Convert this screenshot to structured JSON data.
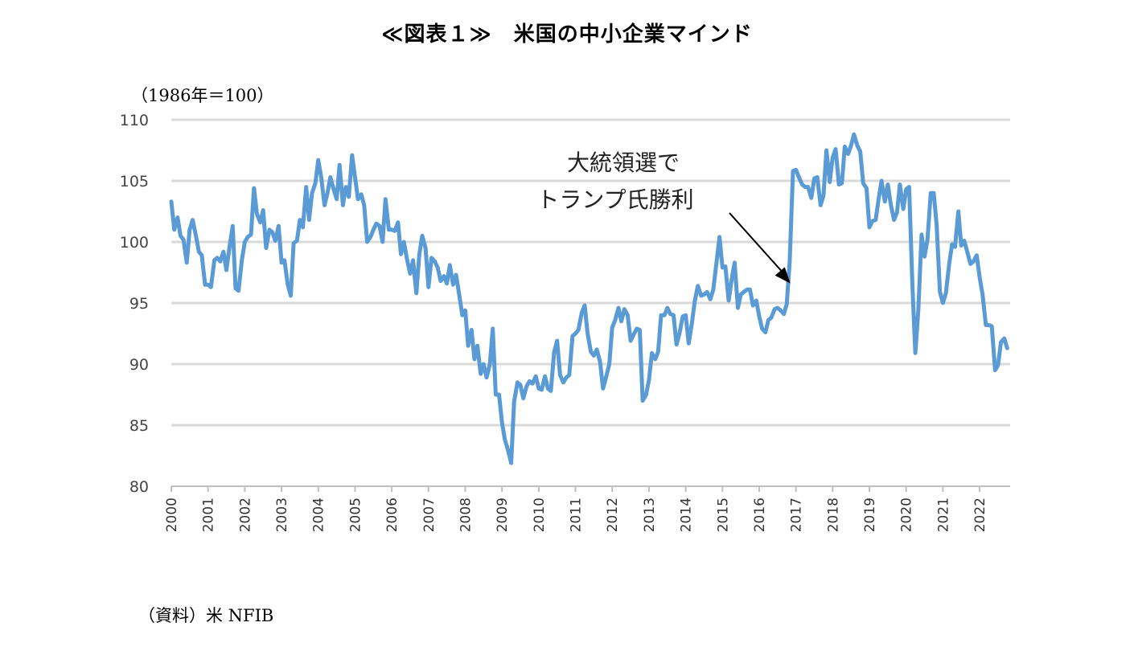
{
  "title": "≪図表１≫　米国の中小企業マインド",
  "unit_label": "（1986年＝100）",
  "source": "（資料）米 NFIB",
  "chart_data": {
    "type": "line",
    "xlabel": "",
    "ylabel": "",
    "ylim": [
      80,
      110
    ],
    "y_ticks": [
      80,
      85,
      90,
      95,
      100,
      105,
      110
    ],
    "x_ticks": [
      "2000",
      "2001",
      "2002",
      "2003",
      "2004",
      "2005",
      "2006",
      "2007",
      "2008",
      "2009",
      "2010",
      "2011",
      "2012",
      "2013",
      "2014",
      "2015",
      "2016",
      "2017",
      "2018",
      "2019",
      "2020",
      "2021",
      "2022"
    ],
    "grid": true,
    "line_color": "#5B9BD5",
    "annotation": {
      "lines": [
        "大統領選で",
        "トランプ氏勝利"
      ],
      "x": 2016.85,
      "y": 96.6
    },
    "series": [
      {
        "points": [
          [
            2000.0,
            103.3
          ],
          [
            2000.08,
            101.0
          ],
          [
            2000.17,
            102.0
          ],
          [
            2000.25,
            100.5
          ],
          [
            2000.33,
            100.2
          ],
          [
            2000.42,
            98.3
          ],
          [
            2000.5,
            101.0
          ],
          [
            2000.58,
            101.8
          ],
          [
            2000.67,
            100.5
          ],
          [
            2000.75,
            99.2
          ],
          [
            2000.83,
            98.9
          ],
          [
            2000.92,
            96.5
          ],
          [
            2001.0,
            96.5
          ],
          [
            2001.08,
            96.3
          ],
          [
            2001.17,
            98.5
          ],
          [
            2001.25,
            98.7
          ],
          [
            2001.33,
            98.4
          ],
          [
            2001.42,
            99.2
          ],
          [
            2001.5,
            97.7
          ],
          [
            2001.58,
            99.5
          ],
          [
            2001.67,
            101.3
          ],
          [
            2001.75,
            96.2
          ],
          [
            2001.83,
            96.0
          ],
          [
            2001.92,
            98.5
          ],
          [
            2002.0,
            100.0
          ],
          [
            2002.08,
            100.4
          ],
          [
            2002.17,
            100.6
          ],
          [
            2002.25,
            104.4
          ],
          [
            2002.33,
            102.3
          ],
          [
            2002.42,
            101.6
          ],
          [
            2002.5,
            102.6
          ],
          [
            2002.58,
            99.5
          ],
          [
            2002.67,
            101.0
          ],
          [
            2002.75,
            100.8
          ],
          [
            2002.83,
            100.1
          ],
          [
            2002.92,
            101.3
          ],
          [
            2003.0,
            98.3
          ],
          [
            2003.08,
            98.5
          ],
          [
            2003.17,
            96.5
          ],
          [
            2003.25,
            95.6
          ],
          [
            2003.33,
            99.9
          ],
          [
            2003.42,
            100.1
          ],
          [
            2003.5,
            101.8
          ],
          [
            2003.58,
            101.2
          ],
          [
            2003.67,
            104.5
          ],
          [
            2003.75,
            101.8
          ],
          [
            2003.83,
            104.0
          ],
          [
            2003.92,
            104.8
          ],
          [
            2004.0,
            106.7
          ],
          [
            2004.08,
            105.3
          ],
          [
            2004.17,
            103.0
          ],
          [
            2004.25,
            104.0
          ],
          [
            2004.33,
            105.3
          ],
          [
            2004.42,
            104.3
          ],
          [
            2004.5,
            103.5
          ],
          [
            2004.58,
            106.3
          ],
          [
            2004.67,
            103.0
          ],
          [
            2004.75,
            104.5
          ],
          [
            2004.83,
            103.7
          ],
          [
            2004.92,
            107.1
          ],
          [
            2005.0,
            105.3
          ],
          [
            2005.08,
            103.5
          ],
          [
            2005.17,
            103.9
          ],
          [
            2005.25,
            103.0
          ],
          [
            2005.33,
            100.0
          ],
          [
            2005.42,
            100.4
          ],
          [
            2005.5,
            101.0
          ],
          [
            2005.58,
            101.5
          ],
          [
            2005.67,
            101.3
          ],
          [
            2005.75,
            100.0
          ],
          [
            2005.83,
            103.5
          ],
          [
            2005.92,
            101.0
          ],
          [
            2006.0,
            101.0
          ],
          [
            2006.08,
            100.9
          ],
          [
            2006.17,
            101.6
          ],
          [
            2006.25,
            99.0
          ],
          [
            2006.33,
            100.0
          ],
          [
            2006.42,
            98.5
          ],
          [
            2006.5,
            97.4
          ],
          [
            2006.58,
            98.5
          ],
          [
            2006.67,
            95.8
          ],
          [
            2006.75,
            99.0
          ],
          [
            2006.83,
            100.5
          ],
          [
            2006.92,
            99.5
          ],
          [
            2007.0,
            96.3
          ],
          [
            2007.08,
            98.7
          ],
          [
            2007.17,
            98.4
          ],
          [
            2007.25,
            97.9
          ],
          [
            2007.33,
            96.8
          ],
          [
            2007.42,
            97.2
          ],
          [
            2007.5,
            96.6
          ],
          [
            2007.58,
            98.1
          ],
          [
            2007.67,
            96.5
          ],
          [
            2007.75,
            97.3
          ],
          [
            2007.83,
            95.8
          ],
          [
            2007.92,
            94.0
          ],
          [
            2008.0,
            94.4
          ],
          [
            2008.08,
            91.5
          ],
          [
            2008.17,
            92.8
          ],
          [
            2008.25,
            90.4
          ],
          [
            2008.33,
            91.5
          ],
          [
            2008.42,
            89.2
          ],
          [
            2008.5,
            90.0
          ],
          [
            2008.58,
            88.9
          ],
          [
            2008.67,
            90.0
          ],
          [
            2008.75,
            92.9
          ],
          [
            2008.83,
            87.5
          ],
          [
            2008.92,
            87.5
          ],
          [
            2009.0,
            85.2
          ],
          [
            2009.08,
            83.8
          ],
          [
            2009.17,
            82.9
          ],
          [
            2009.25,
            81.9
          ],
          [
            2009.33,
            86.9
          ],
          [
            2009.42,
            88.5
          ],
          [
            2009.5,
            88.3
          ],
          [
            2009.58,
            87.2
          ],
          [
            2009.67,
            88.2
          ],
          [
            2009.75,
            88.6
          ],
          [
            2009.83,
            88.4
          ],
          [
            2009.92,
            89.0
          ],
          [
            2010.0,
            88.0
          ],
          [
            2010.08,
            87.9
          ],
          [
            2010.17,
            89.0
          ],
          [
            2010.25,
            88.0
          ],
          [
            2010.33,
            87.8
          ],
          [
            2010.42,
            91.0
          ],
          [
            2010.5,
            91.9
          ],
          [
            2010.58,
            89.1
          ],
          [
            2010.67,
            88.5
          ],
          [
            2010.75,
            88.9
          ],
          [
            2010.83,
            89.1
          ],
          [
            2010.92,
            92.3
          ],
          [
            2011.0,
            92.5
          ],
          [
            2011.08,
            92.8
          ],
          [
            2011.17,
            94.2
          ],
          [
            2011.25,
            94.8
          ],
          [
            2011.33,
            92.5
          ],
          [
            2011.42,
            91.0
          ],
          [
            2011.5,
            90.7
          ],
          [
            2011.58,
            91.2
          ],
          [
            2011.67,
            90.2
          ],
          [
            2011.75,
            88.0
          ],
          [
            2011.83,
            88.9
          ],
          [
            2011.92,
            90.0
          ],
          [
            2012.0,
            93.0
          ],
          [
            2012.08,
            93.6
          ],
          [
            2012.17,
            94.6
          ],
          [
            2012.25,
            93.5
          ],
          [
            2012.33,
            94.5
          ],
          [
            2012.42,
            94.0
          ],
          [
            2012.5,
            91.9
          ],
          [
            2012.58,
            92.4
          ],
          [
            2012.67,
            92.9
          ],
          [
            2012.75,
            92.8
          ],
          [
            2012.83,
            87.0
          ],
          [
            2012.92,
            87.5
          ],
          [
            2013.0,
            88.7
          ],
          [
            2013.08,
            90.9
          ],
          [
            2013.17,
            90.4
          ],
          [
            2013.25,
            91.0
          ],
          [
            2013.33,
            94.0
          ],
          [
            2013.42,
            94.0
          ],
          [
            2013.5,
            94.6
          ],
          [
            2013.58,
            94.1
          ],
          [
            2013.67,
            94.0
          ],
          [
            2013.75,
            91.6
          ],
          [
            2013.83,
            92.5
          ],
          [
            2013.92,
            93.9
          ],
          [
            2014.0,
            94.0
          ],
          [
            2014.08,
            91.7
          ],
          [
            2014.17,
            93.4
          ],
          [
            2014.25,
            95.2
          ],
          [
            2014.33,
            96.4
          ],
          [
            2014.42,
            95.6
          ],
          [
            2014.5,
            95.7
          ],
          [
            2014.58,
            95.9
          ],
          [
            2014.67,
            95.3
          ],
          [
            2014.75,
            96.1
          ],
          [
            2014.83,
            98.1
          ],
          [
            2014.92,
            100.4
          ],
          [
            2015.0,
            97.9
          ],
          [
            2015.08,
            98.0
          ],
          [
            2015.17,
            95.2
          ],
          [
            2015.25,
            96.9
          ],
          [
            2015.33,
            98.3
          ],
          [
            2015.42,
            94.6
          ],
          [
            2015.5,
            95.7
          ],
          [
            2015.58,
            95.9
          ],
          [
            2015.67,
            96.1
          ],
          [
            2015.75,
            96.1
          ],
          [
            2015.83,
            94.8
          ],
          [
            2015.92,
            95.2
          ],
          [
            2016.0,
            93.9
          ],
          [
            2016.08,
            92.9
          ],
          [
            2016.17,
            92.6
          ],
          [
            2016.25,
            93.6
          ],
          [
            2016.33,
            93.8
          ],
          [
            2016.42,
            94.5
          ],
          [
            2016.5,
            94.6
          ],
          [
            2016.58,
            94.4
          ],
          [
            2016.67,
            94.1
          ],
          [
            2016.75,
            94.9
          ],
          [
            2016.83,
            98.4
          ],
          [
            2016.92,
            105.8
          ],
          [
            2017.0,
            105.9
          ],
          [
            2017.08,
            105.3
          ],
          [
            2017.17,
            104.7
          ],
          [
            2017.25,
            104.5
          ],
          [
            2017.33,
            104.5
          ],
          [
            2017.42,
            103.6
          ],
          [
            2017.5,
            105.2
          ],
          [
            2017.58,
            105.3
          ],
          [
            2017.67,
            103.0
          ],
          [
            2017.75,
            103.8
          ],
          [
            2017.83,
            107.5
          ],
          [
            2017.92,
            104.9
          ],
          [
            2018.0,
            106.9
          ],
          [
            2018.08,
            107.6
          ],
          [
            2018.17,
            104.7
          ],
          [
            2018.25,
            104.8
          ],
          [
            2018.33,
            107.8
          ],
          [
            2018.42,
            107.2
          ],
          [
            2018.5,
            107.9
          ],
          [
            2018.58,
            108.8
          ],
          [
            2018.67,
            107.9
          ],
          [
            2018.75,
            107.4
          ],
          [
            2018.83,
            104.8
          ],
          [
            2018.92,
            104.4
          ],
          [
            2019.0,
            101.2
          ],
          [
            2019.08,
            101.7
          ],
          [
            2019.17,
            101.8
          ],
          [
            2019.25,
            103.5
          ],
          [
            2019.33,
            105.0
          ],
          [
            2019.42,
            103.3
          ],
          [
            2019.5,
            104.7
          ],
          [
            2019.58,
            103.1
          ],
          [
            2019.67,
            101.8
          ],
          [
            2019.75,
            102.4
          ],
          [
            2019.83,
            104.7
          ],
          [
            2019.92,
            102.7
          ],
          [
            2020.0,
            104.3
          ],
          [
            2020.08,
            104.5
          ],
          [
            2020.17,
            96.4
          ],
          [
            2020.25,
            90.9
          ],
          [
            2020.33,
            94.4
          ],
          [
            2020.42,
            100.6
          ],
          [
            2020.5,
            98.8
          ],
          [
            2020.58,
            100.2
          ],
          [
            2020.67,
            104.0
          ],
          [
            2020.75,
            104.0
          ],
          [
            2020.83,
            101.4
          ],
          [
            2020.92,
            95.9
          ],
          [
            2021.0,
            95.0
          ],
          [
            2021.08,
            95.8
          ],
          [
            2021.17,
            98.2
          ],
          [
            2021.25,
            99.8
          ],
          [
            2021.33,
            99.6
          ],
          [
            2021.42,
            102.5
          ],
          [
            2021.5,
            99.7
          ],
          [
            2021.58,
            100.1
          ],
          [
            2021.67,
            99.1
          ],
          [
            2021.75,
            98.2
          ],
          [
            2021.83,
            98.4
          ],
          [
            2021.92,
            98.9
          ],
          [
            2022.0,
            97.1
          ],
          [
            2022.08,
            95.7
          ],
          [
            2022.17,
            93.2
          ],
          [
            2022.25,
            93.2
          ],
          [
            2022.33,
            93.1
          ],
          [
            2022.42,
            89.5
          ],
          [
            2022.5,
            89.9
          ],
          [
            2022.58,
            91.8
          ],
          [
            2022.67,
            92.1
          ],
          [
            2022.75,
            91.3
          ]
        ]
      }
    ]
  }
}
